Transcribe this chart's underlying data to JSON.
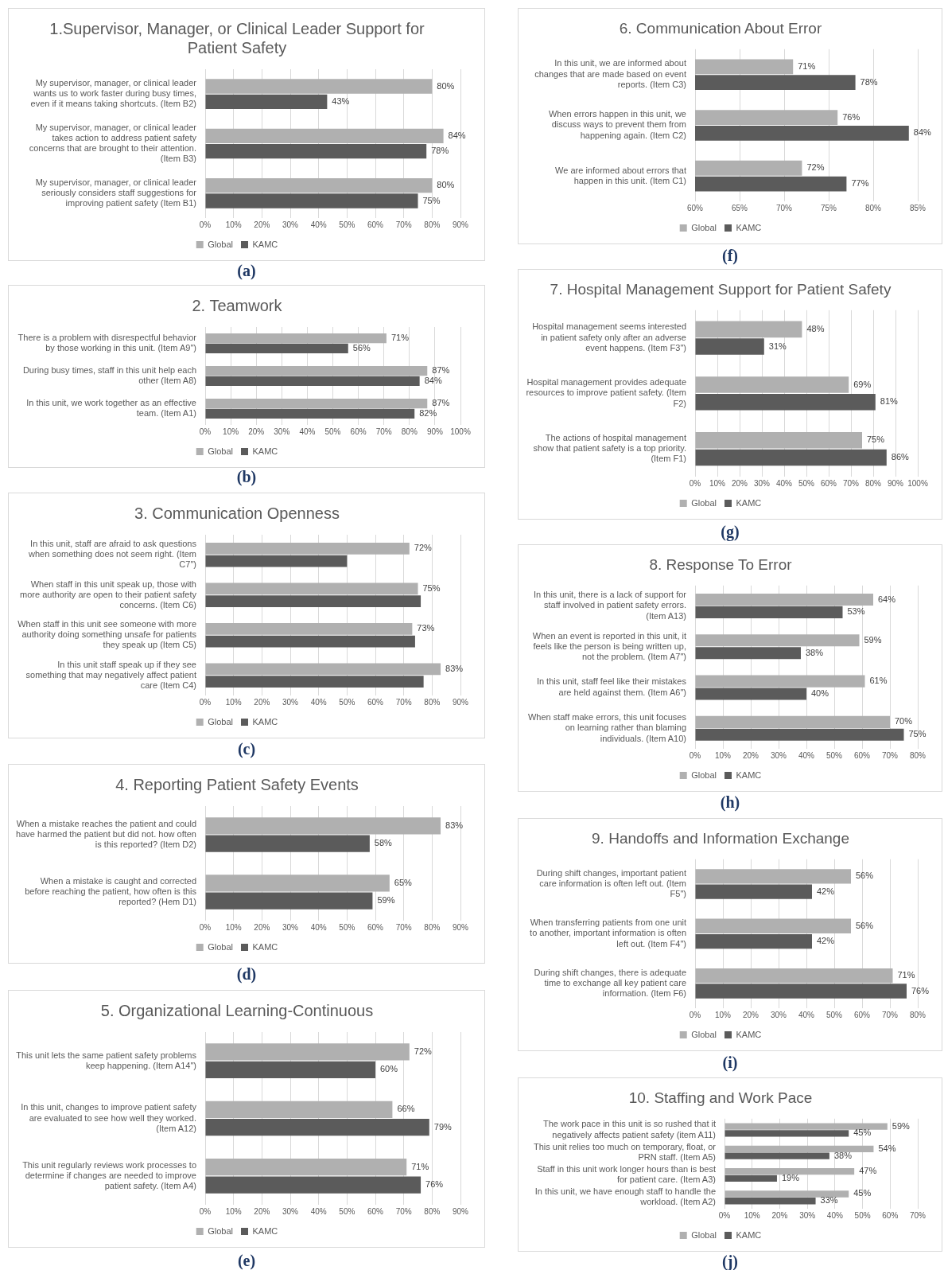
{
  "chart_data": [
    {
      "type": "bar",
      "orientation": "horizontal",
      "title": "1.Supervisor, Manager, or Clinical Leader Support for Patient Safety",
      "categories": [
        "My supervisor, manager, or clinical leader wants us to work faster during busy times, even if it means taking shortcuts. (Item B2)",
        "My supervisor, manager, or clinical leader takes action to address patient safety concerns that are brought to their attention. (Item B3)",
        "My supervisor, manager, or clinical leader seriously considers staff suggestions for improving patient safety (Item B1)"
      ],
      "series": [
        {
          "name": "Global",
          "color": "#b0b0b0",
          "values": [
            80,
            84,
            80
          ],
          "value_labels": [
            "80%",
            "84%",
            "80%"
          ]
        },
        {
          "name": "KAMC",
          "color": "#5b5b5b",
          "values": [
            43,
            78,
            75
          ],
          "value_labels": [
            "43%",
            "78%",
            "75%"
          ]
        }
      ],
      "xlim": [
        0,
        90
      ],
      "xticks": [
        {
          "value": 0,
          "label": "0%"
        },
        {
          "value": 10,
          "label": "10%"
        },
        {
          "value": 20,
          "label": "20%"
        },
        {
          "value": 30,
          "label": "30%"
        },
        {
          "value": 40,
          "label": "40%"
        },
        {
          "value": 50,
          "label": "50%"
        },
        {
          "value": 60,
          "label": "60%"
        },
        {
          "value": 70,
          "label": "70%"
        },
        {
          "value": 80,
          "label": "80%"
        },
        {
          "value": 90,
          "label": "90%"
        }
      ],
      "grid": "x",
      "legend": "bottom",
      "annotations": [
        "(a)"
      ]
    },
    {
      "type": "bar",
      "orientation": "horizontal",
      "title": "2. Teamwork",
      "categories": [
        "There is a problem with disrespectful behavior by those working in this unit. (Item A9\")",
        "During busy times, staff in this unit help each other (Item A8)",
        "In this unit, we work together as an effective team. (Item A1)"
      ],
      "series": [
        {
          "name": "Global",
          "color": "#b0b0b0",
          "values": [
            71,
            87,
            87
          ],
          "value_labels": [
            "71%",
            "87%",
            "87%"
          ]
        },
        {
          "name": "KAMC",
          "color": "#5b5b5b",
          "values": [
            56,
            84,
            82
          ],
          "value_labels": [
            "56%",
            "84%",
            "82%"
          ]
        }
      ],
      "xlim": [
        0,
        100
      ],
      "xticks": [
        {
          "value": 0,
          "label": "0%"
        },
        {
          "value": 10,
          "label": "10%"
        },
        {
          "value": 20,
          "label": "20%"
        },
        {
          "value": 30,
          "label": "30%"
        },
        {
          "value": 40,
          "label": "40%"
        },
        {
          "value": 50,
          "label": "50%"
        },
        {
          "value": 60,
          "label": "60%"
        },
        {
          "value": 70,
          "label": "70%"
        },
        {
          "value": 80,
          "label": "80%"
        },
        {
          "value": 90,
          "label": "90%"
        },
        {
          "value": 100,
          "label": "100%"
        }
      ],
      "grid": "x",
      "legend": "bottom",
      "annotations": [
        "(b)"
      ]
    },
    {
      "type": "bar",
      "orientation": "horizontal",
      "title": "3. Communication Openness",
      "categories": [
        "In this unit, staff are afraid to ask questions when something does not seem right. (Item C7\")",
        "When staff in this unit speak up, those with more authority are open to their patient safety concerns. (Item C6)",
        "When staff in this unit see someone with more authority doing something unsafe for patients they speak up (Item C5)",
        "In this unit staff speak up if they see something that may negatively affect patient care (Item C4)"
      ],
      "series": [
        {
          "name": "Global",
          "color": "#b0b0b0",
          "values": [
            72,
            75,
            73,
            83
          ],
          "value_labels": [
            "72%",
            "75%",
            "73%",
            "83%"
          ]
        },
        {
          "name": "KAMC",
          "color": "#5b5b5b",
          "values": [
            50,
            76,
            74,
            77
          ]
        }
      ],
      "xlim": [
        0,
        90
      ],
      "xticks": [
        {
          "value": 0,
          "label": "0%"
        },
        {
          "value": 10,
          "label": "10%"
        },
        {
          "value": 20,
          "label": "20%"
        },
        {
          "value": 30,
          "label": "30%"
        },
        {
          "value": 40,
          "label": "40%"
        },
        {
          "value": 50,
          "label": "50%"
        },
        {
          "value": 60,
          "label": "60%"
        },
        {
          "value": 70,
          "label": "70%"
        },
        {
          "value": 80,
          "label": "80%"
        },
        {
          "value": 90,
          "label": "90%"
        }
      ],
      "grid": "x",
      "legend": "bottom",
      "annotations": [
        "(c)"
      ]
    },
    {
      "type": "bar",
      "orientation": "horizontal",
      "title": "4. Reporting Patient Safety Events",
      "categories": [
        "When a mistake reaches the patient and could have harmed the patient but did not. how often is this reported? (Item D2)",
        "When a mistake is caught and corrected before reaching the patient, how often is this reported? (Hem D1)"
      ],
      "series": [
        {
          "name": "Global",
          "color": "#b0b0b0",
          "values": [
            83,
            65
          ],
          "value_labels": [
            "83%",
            "65%"
          ]
        },
        {
          "name": "KAMC",
          "color": "#5b5b5b",
          "values": [
            58,
            59
          ],
          "value_labels": [
            "58%",
            "59%"
          ]
        }
      ],
      "xlim": [
        0,
        90
      ],
      "xticks": [
        {
          "value": 0,
          "label": "0%"
        },
        {
          "value": 10,
          "label": "10%"
        },
        {
          "value": 20,
          "label": "20%"
        },
        {
          "value": 30,
          "label": "30%"
        },
        {
          "value": 40,
          "label": "40%"
        },
        {
          "value": 50,
          "label": "50%"
        },
        {
          "value": 60,
          "label": "60%"
        },
        {
          "value": 70,
          "label": "70%"
        },
        {
          "value": 80,
          "label": "80%"
        },
        {
          "value": 90,
          "label": "90%"
        }
      ],
      "grid": "x",
      "legend": "bottom",
      "annotations": [
        "(d)"
      ]
    },
    {
      "type": "bar",
      "orientation": "horizontal",
      "title": "5. Organizational Learning-Continuous",
      "categories": [
        "This unit lets the same patient safety problems keep happening. (Item A14\")",
        "In this unit, changes to improve patient safety are evaluated to see how well they worked. (Item A12)",
        "This unit regularly reviews work processes to determine if changes are needed to improve patient safety. (Item A4)"
      ],
      "series": [
        {
          "name": "Global",
          "color": "#b0b0b0",
          "values": [
            72,
            66,
            71
          ],
          "value_labels": [
            "72%",
            "66%",
            "71%"
          ]
        },
        {
          "name": "KAMC",
          "color": "#5b5b5b",
          "values": [
            60,
            79,
            76
          ],
          "value_labels": [
            "60%",
            "79%",
            "76%"
          ]
        }
      ],
      "xlim": [
        0,
        90
      ],
      "xticks": [
        {
          "value": 0,
          "label": "0%"
        },
        {
          "value": 10,
          "label": "10%"
        },
        {
          "value": 20,
          "label": "20%"
        },
        {
          "value": 30,
          "label": "30%"
        },
        {
          "value": 40,
          "label": "40%"
        },
        {
          "value": 50,
          "label": "50%"
        },
        {
          "value": 60,
          "label": "60%"
        },
        {
          "value": 70,
          "label": "70%"
        },
        {
          "value": 80,
          "label": "80%"
        },
        {
          "value": 90,
          "label": "90%"
        }
      ],
      "grid": "x",
      "legend": "bottom",
      "annotations": [
        "(e)"
      ]
    },
    {
      "type": "bar",
      "orientation": "horizontal",
      "title": "6. Communication About Error",
      "categories": [
        "In this unit, we are informed about changes that are made based on event reports. (Item C3)",
        "When errors happen in this unit, we discuss ways to prevent them from happening again. (Item C2)",
        "We are informed about errors that happen in this unit. (Item C1)"
      ],
      "series": [
        {
          "name": "Global",
          "color": "#b0b0b0",
          "values": [
            71,
            76,
            72
          ],
          "value_labels": [
            "71%",
            "76%",
            "72%"
          ]
        },
        {
          "name": "KAMC",
          "color": "#5b5b5b",
          "values": [
            78,
            84,
            77
          ],
          "value_labels": [
            "78%",
            "84%",
            "77%"
          ]
        }
      ],
      "xlim": [
        60,
        85
      ],
      "xticks": [
        {
          "value": 60,
          "label": "60%"
        },
        {
          "value": 65,
          "label": "65%"
        },
        {
          "value": 70,
          "label": "70%"
        },
        {
          "value": 75,
          "label": "75%"
        },
        {
          "value": 80,
          "label": "80%"
        },
        {
          "value": 85,
          "label": "85%"
        }
      ],
      "grid": "x",
      "legend": "bottom",
      "annotations": [
        "(f)"
      ]
    },
    {
      "type": "bar",
      "orientation": "horizontal",
      "title": "7. Hospital Management Support for Patient Safety",
      "categories": [
        "Hospital management seems interested in patient safety only after an adverse event happens. (Item F3\")",
        "Hospital management provides adequate resources to improve patient safety. (Item F2)",
        "The actions of hospital management show that patient safety is a top priority. (Item F1)"
      ],
      "series": [
        {
          "name": "Global",
          "color": "#b0b0b0",
          "values": [
            48,
            69,
            75
          ],
          "value_labels": [
            "48%",
            "69%",
            "75%"
          ]
        },
        {
          "name": "KAMC",
          "color": "#5b5b5b",
          "values": [
            31,
            81,
            86
          ],
          "value_labels": [
            "31%",
            "81%",
            "86%"
          ]
        }
      ],
      "xlim": [
        0,
        100
      ],
      "xticks": [
        {
          "value": 0,
          "label": "0%"
        },
        {
          "value": 10,
          "label": "10%"
        },
        {
          "value": 20,
          "label": "20%"
        },
        {
          "value": 30,
          "label": "30%"
        },
        {
          "value": 40,
          "label": "40%"
        },
        {
          "value": 50,
          "label": "50%"
        },
        {
          "value": 60,
          "label": "60%"
        },
        {
          "value": 70,
          "label": "70%"
        },
        {
          "value": 80,
          "label": "80%"
        },
        {
          "value": 90,
          "label": "90%"
        },
        {
          "value": 100,
          "label": "100%"
        }
      ],
      "grid": "x",
      "legend": "bottom",
      "annotations": [
        "(g)"
      ]
    },
    {
      "type": "bar",
      "orientation": "horizontal",
      "title": "8. Response To Error",
      "categories": [
        "In this unit, there is a lack of support for staff involved in patient safety errors. (Item A13)",
        "When an event is reported in this unit, it feels like the person is being written up, not the problem. (Item A7\")",
        "In this unit, staff feel like their mistakes are held against them. (Item A6\")",
        "When staff make errors, this unit focuses on learning rather than blaming individuals. (Item A10)"
      ],
      "series": [
        {
          "name": "Global",
          "color": "#b0b0b0",
          "values": [
            64,
            59,
            61,
            70
          ],
          "value_labels": [
            "64%",
            "59%",
            "61%",
            "70%"
          ]
        },
        {
          "name": "KAMC",
          "color": "#5b5b5b",
          "values": [
            53,
            38,
            40,
            75
          ],
          "value_labels": [
            "53%",
            "38%",
            "40%",
            "75%"
          ]
        }
      ],
      "xlim": [
        0,
        80
      ],
      "xticks": [
        {
          "value": 0,
          "label": "0%"
        },
        {
          "value": 10,
          "label": "10%"
        },
        {
          "value": 20,
          "label": "20%"
        },
        {
          "value": 30,
          "label": "30%"
        },
        {
          "value": 40,
          "label": "40%"
        },
        {
          "value": 50,
          "label": "50%"
        },
        {
          "value": 60,
          "label": "60%"
        },
        {
          "value": 70,
          "label": "70%"
        },
        {
          "value": 80,
          "label": "80%"
        }
      ],
      "grid": "x",
      "legend": "bottom",
      "annotations": [
        "(h)"
      ]
    },
    {
      "type": "bar",
      "orientation": "horizontal",
      "title": "9. Handoffs and Information Exchange",
      "categories": [
        "During shift changes, important patient care information is often left out. (Item F5\")",
        "When transferring patients from one unit to another, important information is often left out. (Item F4\")",
        "During shift changes, there is adequate time to exchange all key patient care information. (Item F6)"
      ],
      "series": [
        {
          "name": "Global",
          "color": "#b0b0b0",
          "values": [
            56,
            56,
            71
          ],
          "value_labels": [
            "56%",
            "56%",
            "71%"
          ]
        },
        {
          "name": "KAMC",
          "color": "#5b5b5b",
          "values": [
            42,
            42,
            76
          ],
          "value_labels": [
            "42%",
            "42%",
            "76%"
          ]
        }
      ],
      "xlim": [
        0,
        80
      ],
      "xticks": [
        {
          "value": 0,
          "label": "0%"
        },
        {
          "value": 10,
          "label": "10%"
        },
        {
          "value": 20,
          "label": "20%"
        },
        {
          "value": 30,
          "label": "30%"
        },
        {
          "value": 40,
          "label": "40%"
        },
        {
          "value": 50,
          "label": "50%"
        },
        {
          "value": 60,
          "label": "60%"
        },
        {
          "value": 70,
          "label": "70%"
        },
        {
          "value": 80,
          "label": "80%"
        }
      ],
      "grid": "x",
      "legend": "bottom",
      "annotations": [
        "(i)"
      ]
    },
    {
      "type": "bar",
      "orientation": "horizontal",
      "title": "10. Staffing and Work Pace",
      "categories": [
        "The work pace in this unit is so rushed that it negatively affects patient safety (item A11)",
        "This unit relies too much on temporary, float, or PRN staff. (Item A5)",
        "Staff in this unit work longer hours than is best for patient care. (Item A3)",
        "In this unit, we have enough staff to handle the workload. (Item A2)"
      ],
      "series": [
        {
          "name": "Global",
          "color": "#b0b0b0",
          "values": [
            59,
            54,
            47,
            45
          ],
          "value_labels": [
            "59%",
            "54%",
            "47%",
            "45%"
          ]
        },
        {
          "name": "KAMC",
          "color": "#5b5b5b",
          "values": [
            45,
            38,
            19,
            33
          ],
          "value_labels": [
            "45%",
            "38%",
            "19%",
            "33%"
          ]
        }
      ],
      "xlim": [
        0,
        70
      ],
      "xticks": [
        {
          "value": 0,
          "label": "0%"
        },
        {
          "value": 10,
          "label": "10%"
        },
        {
          "value": 20,
          "label": "20%"
        },
        {
          "value": 30,
          "label": "30%"
        },
        {
          "value": 40,
          "label": "40%"
        },
        {
          "value": 50,
          "label": "50%"
        },
        {
          "value": 60,
          "label": "60%"
        },
        {
          "value": 70,
          "label": "70%"
        }
      ],
      "grid": "x",
      "legend": "bottom",
      "annotations": [
        "(j)"
      ]
    }
  ]
}
